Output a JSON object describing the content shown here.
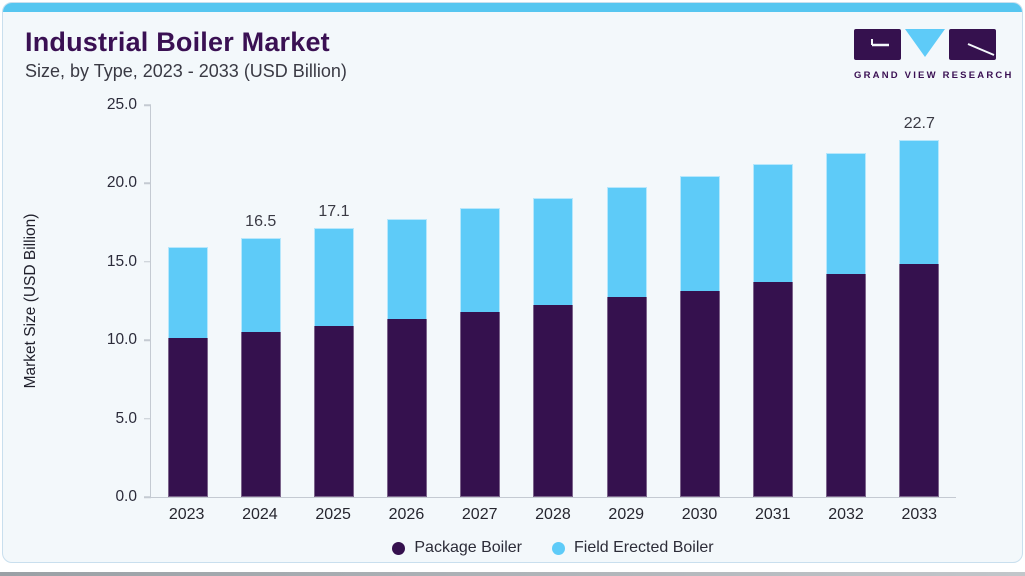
{
  "header": {
    "title": "Industrial Boiler Market",
    "subtitle": "Size, by Type, 2023 - 2033 (USD Billion)"
  },
  "logo": {
    "text": "GRAND VIEW RESEARCH"
  },
  "colors": {
    "accent_blue": "#56c6f0",
    "package_purple": "#35114E",
    "field_blue": "#5ECBF8",
    "title_purple": "#3a1053",
    "card_bg": "#f3f8fb",
    "card_border": "#c9dfee",
    "axis_line": "#c4cad2"
  },
  "chart_data": {
    "type": "bar",
    "stacked": true,
    "title": "Industrial Boiler Market Size, by Type, 2023 - 2033 (USD Billion)",
    "categories": [
      "2023",
      "2024",
      "2025",
      "2026",
      "2027",
      "2028",
      "2029",
      "2030",
      "2031",
      "2032",
      "2033"
    ],
    "series": [
      {
        "name": "Package Boiler",
        "color": "#35114E",
        "values": [
          10.1,
          10.5,
          10.9,
          11.3,
          11.8,
          12.2,
          12.7,
          13.1,
          13.7,
          14.2,
          14.8
        ]
      },
      {
        "name": "Field Erected Boiler",
        "color": "#5ECBF8",
        "values": [
          5.8,
          6.0,
          6.2,
          6.4,
          6.6,
          6.8,
          7.0,
          7.3,
          7.5,
          7.7,
          7.9
        ]
      }
    ],
    "totals": [
      15.9,
      16.5,
      17.1,
      17.7,
      18.4,
      19.0,
      19.7,
      20.4,
      21.2,
      21.9,
      22.7
    ],
    "bar_labels": {
      "2024": "16.5",
      "2025": "17.1",
      "2033": "22.7"
    },
    "ylabel": "Market Size (USD Billion)",
    "xlabel": "",
    "ylim": [
      0,
      25
    ],
    "yticks": [
      "25.0",
      "20.0",
      "15.0",
      "10.0",
      "5.0",
      "0.0"
    ],
    "grid": false,
    "legend_position": "bottom"
  },
  "legend": {
    "items": [
      {
        "label": "Package Boiler",
        "color": "#35114E"
      },
      {
        "label": "Field Erected Boiler",
        "color": "#5ECBF8"
      }
    ]
  }
}
